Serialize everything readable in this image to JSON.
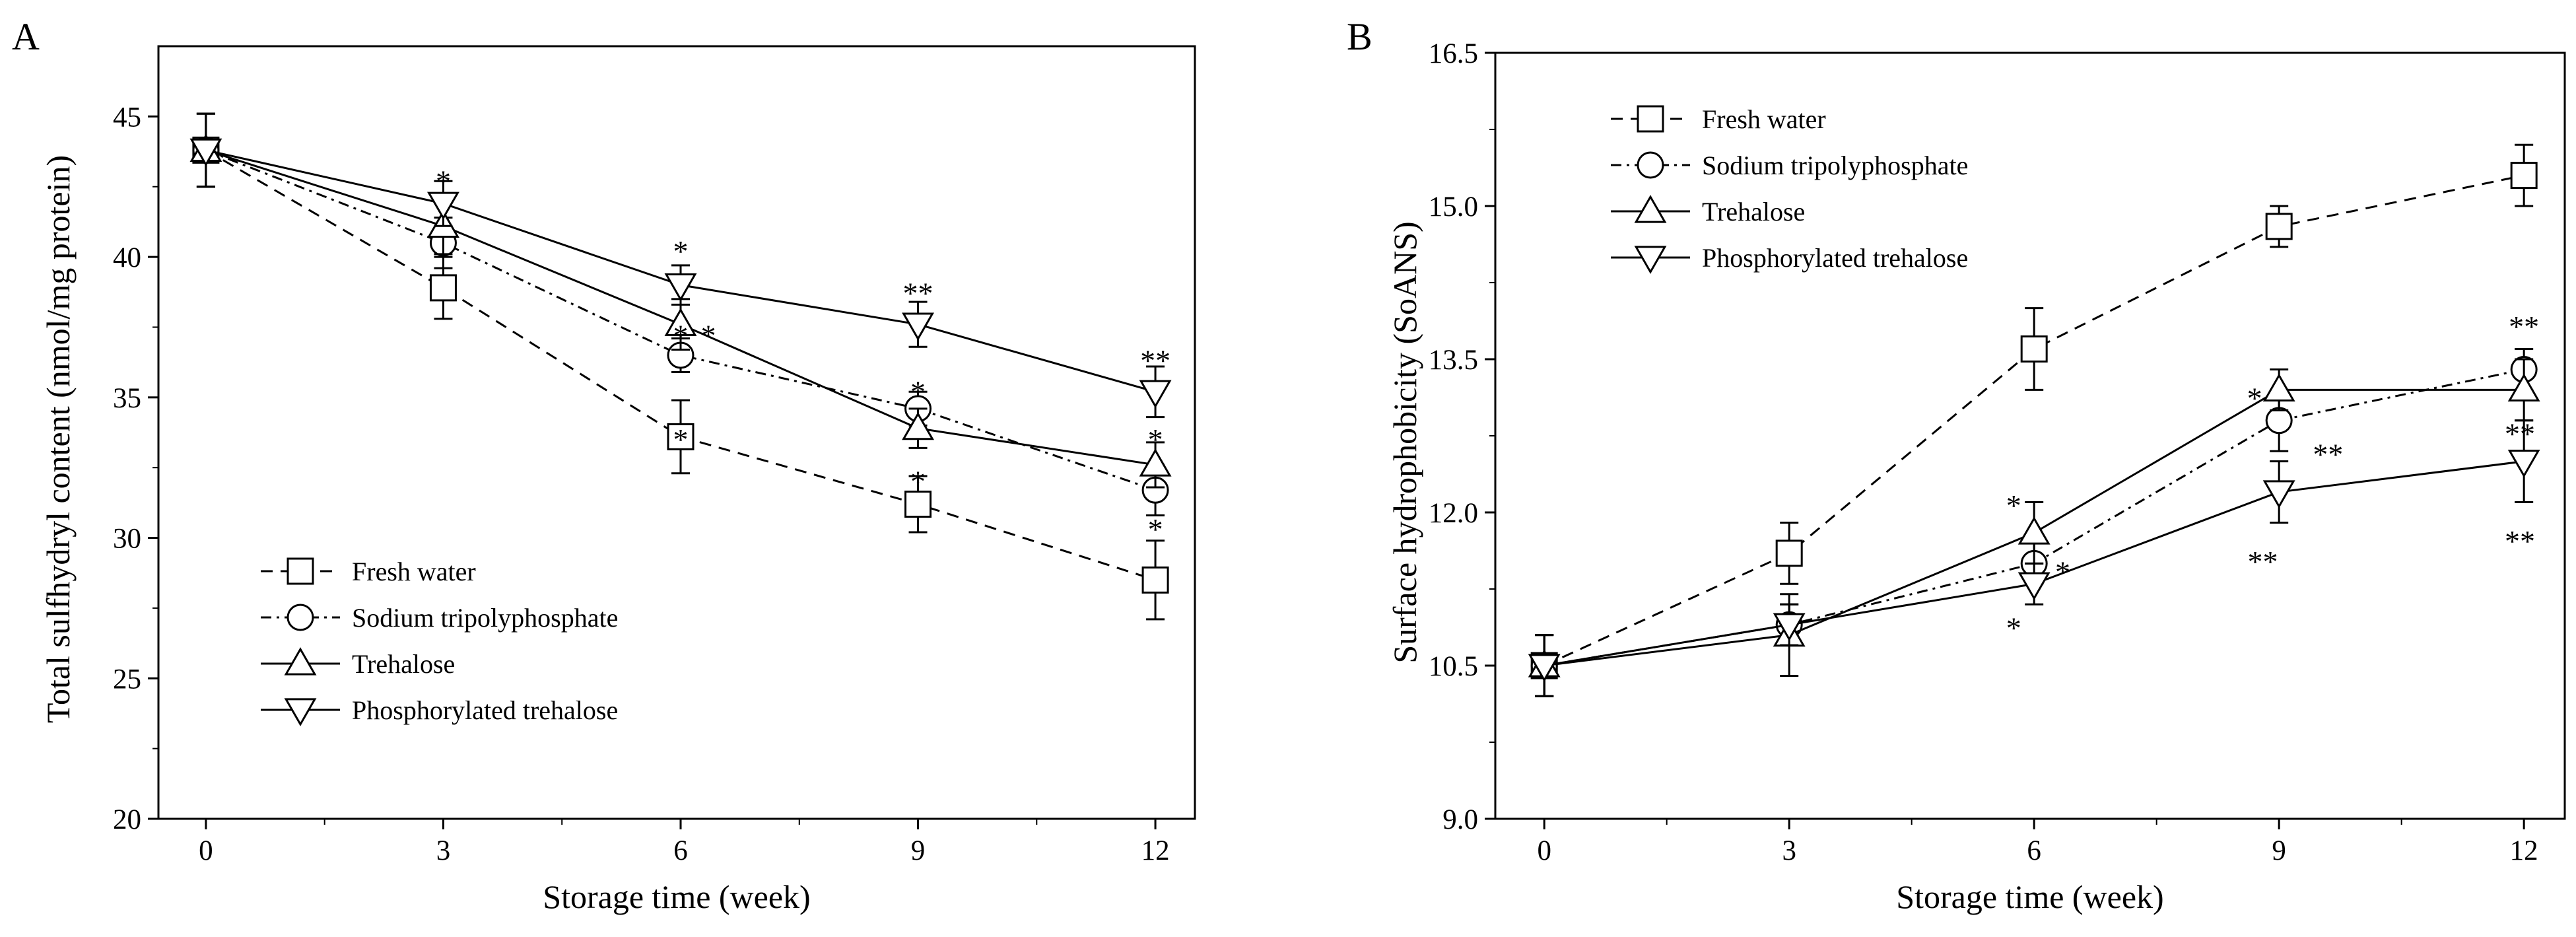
{
  "chart_data": [
    {
      "panel": "A",
      "type": "line",
      "xlabel": "Storage time (week)",
      "ylabel": "Total sulfhydryl content (nmol/mg protein)",
      "x": [
        0,
        3,
        6,
        9,
        12
      ],
      "xticks": [
        "0",
        "3",
        "6",
        "9",
        "12"
      ],
      "yticks": [
        "20",
        "25",
        "30",
        "35",
        "40",
        "45"
      ],
      "xlim": [
        -0.6,
        12.5
      ],
      "ylim": [
        20,
        47.5
      ],
      "legend_position": "bottom-left",
      "series": [
        {
          "name": "Fresh water",
          "marker": "square",
          "dash": "dashed",
          "values": [
            43.8,
            38.9,
            33.6,
            31.2,
            28.5
          ],
          "errors": [
            1.3,
            1.1,
            1.3,
            1.0,
            1.4
          ]
        },
        {
          "name": "Sodium tripolyphosphate",
          "marker": "circle",
          "dash": "dashdot",
          "values": [
            43.8,
            40.5,
            36.5,
            34.6,
            31.7
          ],
          "errors": [
            1.3,
            0.9,
            0.6,
            0.6,
            0.9
          ]
        },
        {
          "name": "Trehalose",
          "marker": "triangle-up",
          "dash": "solid",
          "values": [
            43.8,
            41.1,
            37.6,
            33.9,
            32.6
          ],
          "errors": [
            1.3,
            1.0,
            0.9,
            0.7,
            0.8
          ]
        },
        {
          "name": "Phosphorylated trehalose",
          "marker": "triangle-down",
          "dash": "solid",
          "values": [
            43.8,
            41.9,
            39.0,
            37.6,
            35.2
          ],
          "errors": [
            1.3,
            0.8,
            0.7,
            0.8,
            0.9
          ]
        }
      ],
      "annotations": [
        {
          "x": 3,
          "y": 43.0,
          "text": "*"
        },
        {
          "x": 6,
          "y": 40.5,
          "text": "*"
        },
        {
          "x": 6,
          "y": 37.5,
          "text": "*"
        },
        {
          "x": 6.35,
          "y": 37.5,
          "text": "*"
        },
        {
          "x": 6,
          "y": 33.8,
          "text": "*"
        },
        {
          "x": 9,
          "y": 39.0,
          "text": "**"
        },
        {
          "x": 9,
          "y": 35.5,
          "text": "*"
        },
        {
          "x": 9,
          "y": 32.3,
          "text": "*"
        },
        {
          "x": 12,
          "y": 36.6,
          "text": "**"
        },
        {
          "x": 12,
          "y": 33.8,
          "text": "*"
        },
        {
          "x": 12,
          "y": 30.6,
          "text": "*"
        }
      ]
    },
    {
      "panel": "B",
      "type": "line",
      "xlabel": "Storage time (week)",
      "ylabel": "Surface hydrophobicity (SoANS)",
      "x": [
        0,
        3,
        6,
        9,
        12
      ],
      "xticks": [
        "0",
        "3",
        "6",
        "9",
        "12"
      ],
      "yticks": [
        "9.0",
        "10.5",
        "12.0",
        "13.5",
        "15.0",
        "16.5"
      ],
      "xlim": [
        -0.6,
        12.5
      ],
      "ylim": [
        9.0,
        16.5
      ],
      "legend_position": "top-left",
      "series": [
        {
          "name": "Fresh water",
          "marker": "square",
          "dash": "dashed",
          "values": [
            10.5,
            11.6,
            13.6,
            14.8,
            15.3
          ],
          "errors": [
            0.3,
            0.3,
            0.4,
            0.2,
            0.3
          ]
        },
        {
          "name": "Sodium tripolyphosphate",
          "marker": "circle",
          "dash": "dashdot",
          "values": [
            10.5,
            10.9,
            11.5,
            12.9,
            13.4
          ],
          "errors": [
            0.3,
            0.2,
            0.2,
            0.3,
            0.2
          ]
        },
        {
          "name": "Trehalose",
          "marker": "triangle-up",
          "dash": "solid",
          "values": [
            10.5,
            10.8,
            11.8,
            13.2,
            13.2
          ],
          "errors": [
            0.3,
            0.4,
            0.3,
            0.2,
            0.3
          ]
        },
        {
          "name": "Phosphorylated trehalose",
          "marker": "triangle-down",
          "dash": "solid",
          "values": [
            10.5,
            10.9,
            11.3,
            12.2,
            12.5
          ],
          "errors": [
            0.3,
            0.2,
            0.2,
            0.3,
            0.4
          ]
        }
      ],
      "annotations": [
        {
          "x": 5.75,
          "y": 12.15,
          "text": "*"
        },
        {
          "x": 6.35,
          "y": 11.5,
          "text": "*"
        },
        {
          "x": 5.75,
          "y": 10.95,
          "text": "*"
        },
        {
          "x": 8.7,
          "y": 13.2,
          "text": "*"
        },
        {
          "x": 9.6,
          "y": 12.65,
          "text": "**"
        },
        {
          "x": 8.8,
          "y": 11.6,
          "text": "**"
        },
        {
          "x": 12,
          "y": 13.9,
          "text": "**"
        },
        {
          "x": 11.95,
          "y": 12.85,
          "text": "**"
        },
        {
          "x": 11.95,
          "y": 11.8,
          "text": "**"
        }
      ]
    }
  ]
}
